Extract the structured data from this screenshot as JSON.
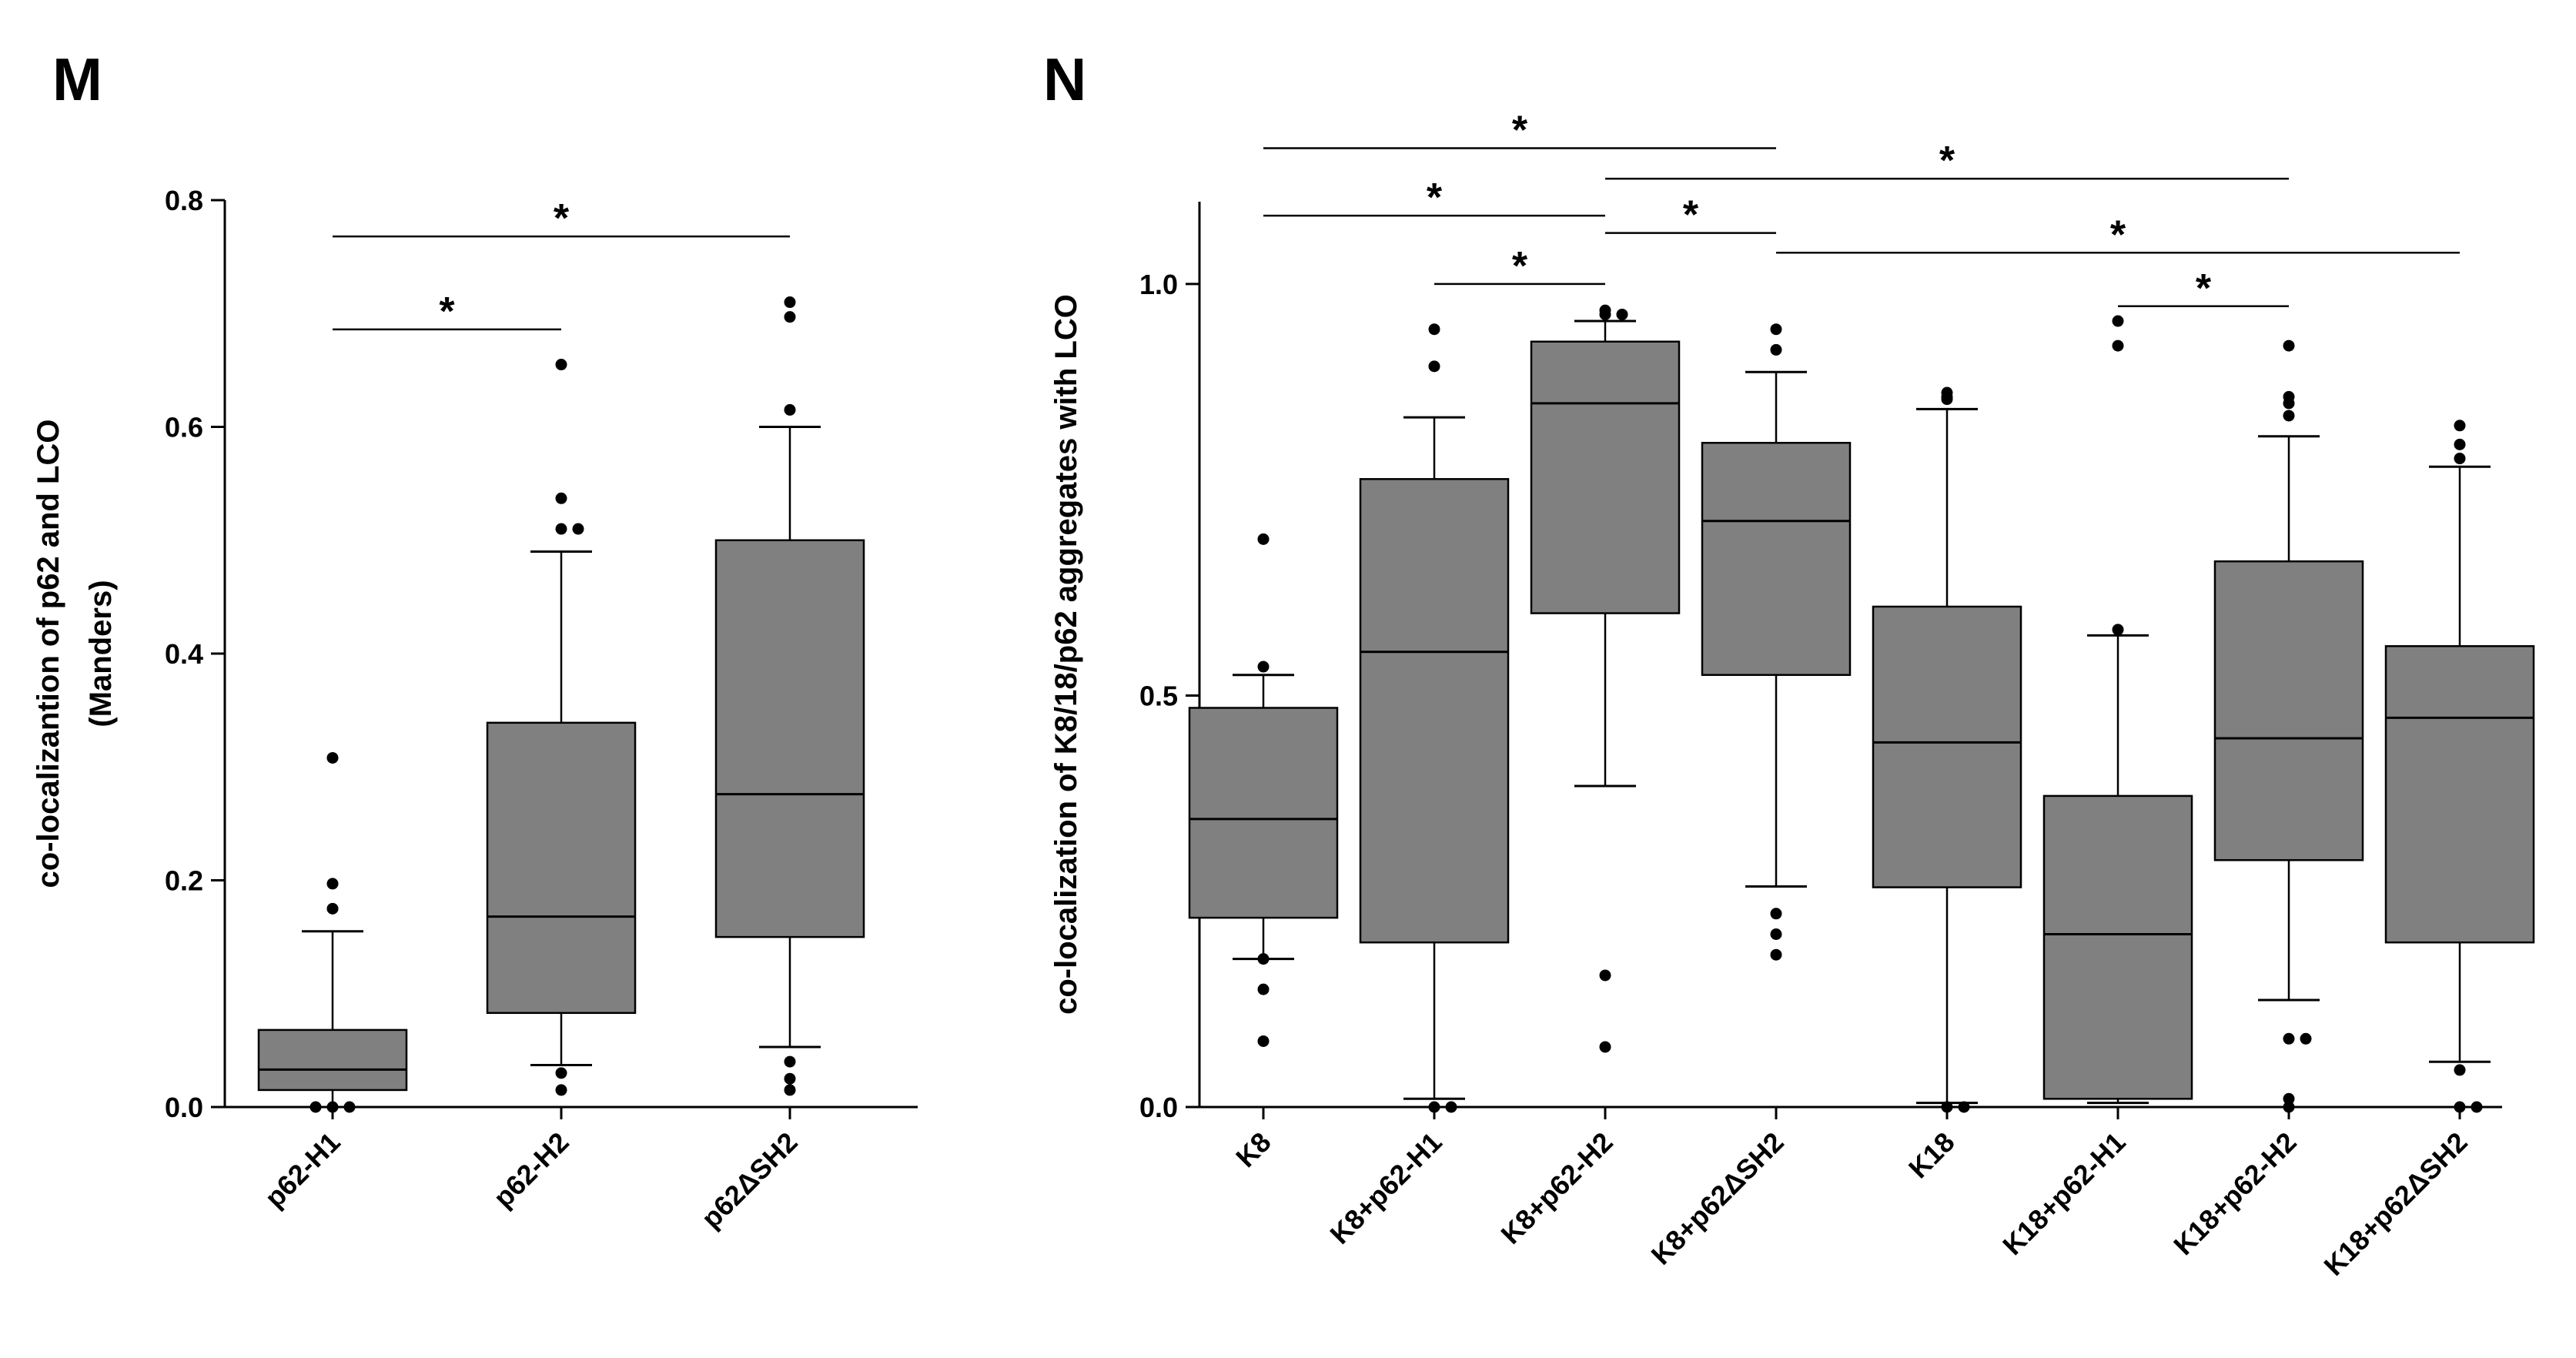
{
  "chart_data": [
    {
      "panel": "M",
      "type": "box",
      "ylabel_lines": [
        "co-localizantion of p62 and LCO",
        "(Manders)"
      ],
      "ylim": [
        0,
        0.8
      ],
      "yticks": [
        0.0,
        0.2,
        0.4,
        0.6,
        0.8
      ],
      "ytick_labels": [
        "0.0",
        "0.2",
        "0.4",
        "0.6",
        "0.8"
      ],
      "categories": [
        "p62-H1",
        "p62-H2",
        "p62ΔSH2"
      ],
      "boxes": [
        {
          "whisker_low": 0.0,
          "q1": 0.015,
          "median": 0.033,
          "q3": 0.068,
          "whisker_high": 0.155,
          "outliers": [
            0.0,
            0.0,
            0.0,
            0.175,
            0.197,
            0.308
          ]
        },
        {
          "whisker_low": 0.037,
          "q1": 0.083,
          "median": 0.168,
          "q3": 0.339,
          "whisker_high": 0.49,
          "outliers": [
            0.015,
            0.03,
            0.51,
            0.51,
            0.537,
            0.655
          ]
        },
        {
          "whisker_low": 0.053,
          "q1": 0.15,
          "median": 0.276,
          "q3": 0.5,
          "whisker_high": 0.6,
          "outliers": [
            0.015,
            0.025,
            0.04,
            0.615,
            0.697,
            0.71
          ]
        }
      ],
      "significance": [
        {
          "from": 0,
          "to": 1,
          "y": 0.686,
          "label": "*"
        },
        {
          "from": 0,
          "to": 2,
          "y": 0.768,
          "label": "*"
        }
      ]
    },
    {
      "panel": "N",
      "type": "box",
      "ylabel_lines": [
        "co-localization of K8/18/p62 aggregates with LCO"
      ],
      "ylim": [
        0,
        1.1
      ],
      "yticks": [
        0.0,
        0.5,
        1.0
      ],
      "ytick_labels": [
        "0.0",
        "0.5",
        "1.0"
      ],
      "categories": [
        "K8",
        "K8+p62-H1",
        "K8+p62-H2",
        "K8+p62ΔSH2",
        "K18",
        "K18+p62-H1",
        "K18+p62-H2",
        "K18+p62ΔSH2"
      ],
      "boxes": [
        {
          "whisker_low": 0.18,
          "q1": 0.23,
          "median": 0.35,
          "q3": 0.485,
          "whisker_high": 0.525,
          "outliers": [
            0.08,
            0.143,
            0.18,
            0.535,
            0.69
          ]
        },
        {
          "whisker_low": 0.01,
          "q1": 0.2,
          "median": 0.553,
          "q3": 0.763,
          "whisker_high": 0.838,
          "outliers": [
            0.0,
            0.0,
            0.9,
            0.945
          ]
        },
        {
          "whisker_low": 0.39,
          "q1": 0.6,
          "median": 0.855,
          "q3": 0.93,
          "whisker_high": 0.955,
          "outliers": [
            0.073,
            0.16,
            0.963,
            0.963,
            0.968
          ]
        },
        {
          "whisker_low": 0.268,
          "q1": 0.525,
          "median": 0.712,
          "q3": 0.807,
          "whisker_high": 0.893,
          "outliers": [
            0.185,
            0.21,
            0.235,
            0.92,
            0.945
          ]
        },
        {
          "whisker_low": 0.005,
          "q1": 0.267,
          "median": 0.443,
          "q3": 0.608,
          "whisker_high": 0.848,
          "outliers": [
            0.0,
            0.0,
            0.86,
            0.863,
            0.868
          ]
        },
        {
          "whisker_low": 0.005,
          "q1": 0.01,
          "median": 0.21,
          "q3": 0.378,
          "whisker_high": 0.573,
          "outliers": [
            0.925,
            0.955,
            0.58
          ]
        },
        {
          "whisker_low": 0.13,
          "q1": 0.3,
          "median": 0.448,
          "q3": 0.663,
          "whisker_high": 0.815,
          "outliers": [
            0.0,
            0.01,
            0.083,
            0.083,
            0.84,
            0.855,
            0.863,
            0.925
          ]
        },
        {
          "whisker_low": 0.055,
          "q1": 0.2,
          "median": 0.473,
          "q3": 0.56,
          "whisker_high": 0.778,
          "outliers": [
            0.0,
            0.0,
            0.045,
            0.788,
            0.805,
            0.828
          ]
        }
      ],
      "significance": [
        {
          "from": 0,
          "to": 3,
          "y": 1.165,
          "label": "*"
        },
        {
          "from": 2,
          "to": 6,
          "y": 1.128,
          "label": "*"
        },
        {
          "from": 0,
          "to": 2,
          "y": 1.083,
          "label": "*"
        },
        {
          "from": 2,
          "to": 3,
          "y": 1.062,
          "label": "*"
        },
        {
          "from": 3,
          "to": 7,
          "y": 1.038,
          "label": "*"
        },
        {
          "from": 1,
          "to": 2,
          "y": 1.0,
          "label": "*"
        },
        {
          "from": 5,
          "to": 6,
          "y": 0.973,
          "label": "*"
        }
      ]
    }
  ]
}
